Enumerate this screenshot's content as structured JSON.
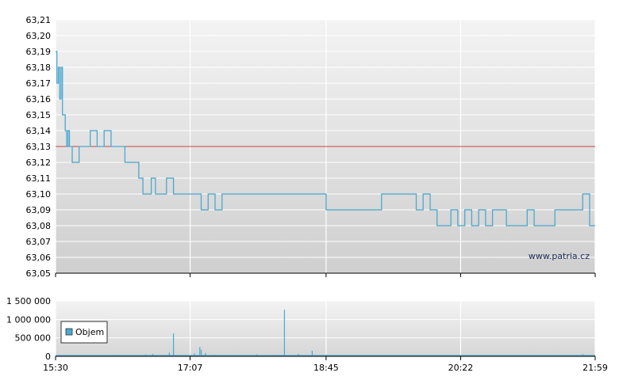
{
  "watermark": "www.patria.cz",
  "colors": {
    "price_line": "#4aa8d0",
    "reference_line": "#d04040",
    "volume_bar": "#4aa8d0",
    "grid": "#ffffff",
    "plot_bg_top": "#f2f2f2",
    "plot_bg_bottom": "#d0d0d0"
  },
  "chart_data": [
    {
      "type": "line",
      "name": "price",
      "ylim": [
        63.05,
        63.21
      ],
      "y_ticks": [
        "63,21",
        "63,20",
        "63,19",
        "63,18",
        "63,17",
        "63,16",
        "63,15",
        "63,14",
        "63,13",
        "63,12",
        "63,11",
        "63,10",
        "63,09",
        "63,08",
        "63,07",
        "63,06",
        "63,05"
      ],
      "x_ticks": [
        "15:30",
        "17:07",
        "18:45",
        "20:22",
        "21:59"
      ],
      "x_range": [
        "15:30",
        "21:59"
      ],
      "reference_value": 63.13,
      "grid": true,
      "series": [
        {
          "x": [
            "15:30",
            "15:31",
            "15:32",
            "15:33",
            "15:34",
            "15:35",
            "15:36",
            "15:37",
            "15:38",
            "15:39",
            "15:40",
            "15:42",
            "15:44",
            "15:47",
            "15:50",
            "15:55",
            "16:00",
            "16:05",
            "16:10",
            "16:15",
            "16:20",
            "16:25",
            "16:30",
            "16:33",
            "16:36",
            "16:39",
            "16:42",
            "16:45",
            "16:50",
            "16:55",
            "17:00",
            "17:05",
            "17:10",
            "17:15",
            "17:20",
            "17:25",
            "17:30",
            "17:35",
            "17:40",
            "17:45",
            "17:50",
            "17:55",
            "18:00",
            "18:05",
            "18:10",
            "18:15",
            "18:20",
            "18:25",
            "18:30",
            "18:35",
            "18:40",
            "18:45",
            "18:50",
            "18:55",
            "19:00",
            "19:05",
            "19:10",
            "19:15",
            "19:20",
            "19:25",
            "19:30",
            "19:35",
            "19:40",
            "19:45",
            "19:50",
            "19:55",
            "20:00",
            "20:05",
            "20:10",
            "20:15",
            "20:20",
            "20:25",
            "20:30",
            "20:35",
            "20:40",
            "20:45",
            "20:50",
            "20:55",
            "21:00",
            "21:05",
            "21:10",
            "21:15",
            "21:20",
            "21:25",
            "21:30",
            "21:35",
            "21:40",
            "21:45",
            "21:50",
            "21:55",
            "21:59"
          ],
          "values": [
            63.19,
            63.17,
            63.18,
            63.16,
            63.18,
            63.15,
            63.15,
            63.14,
            63.13,
            63.14,
            63.13,
            63.12,
            63.12,
            63.13,
            63.13,
            63.14,
            63.13,
            63.14,
            63.13,
            63.13,
            63.12,
            63.12,
            63.11,
            63.1,
            63.1,
            63.11,
            63.1,
            63.1,
            63.11,
            63.1,
            63.1,
            63.1,
            63.1,
            63.09,
            63.1,
            63.09,
            63.1,
            63.1,
            63.1,
            63.1,
            63.1,
            63.1,
            63.1,
            63.1,
            63.1,
            63.1,
            63.1,
            63.1,
            63.1,
            63.1,
            63.1,
            63.09,
            63.09,
            63.09,
            63.09,
            63.09,
            63.09,
            63.09,
            63.09,
            63.1,
            63.1,
            63.1,
            63.1,
            63.1,
            63.09,
            63.1,
            63.09,
            63.08,
            63.08,
            63.09,
            63.08,
            63.09,
            63.08,
            63.09,
            63.08,
            63.09,
            63.09,
            63.08,
            63.08,
            63.08,
            63.09,
            63.08,
            63.08,
            63.08,
            63.09,
            63.09,
            63.09,
            63.09,
            63.1,
            63.08,
            63.08
          ]
        }
      ]
    },
    {
      "type": "bar",
      "name": "volume",
      "ylim": [
        0,
        1500000
      ],
      "y_ticks": [
        "1 500 000",
        "1 000 000",
        "500 000",
        "0"
      ],
      "x_ticks": [
        "15:30",
        "17:07",
        "18:45",
        "20:22",
        "21:59"
      ],
      "legend": "Objem",
      "legend_position": "left",
      "series": [
        {
          "name": "Objem",
          "x": [
            "16:15",
            "16:25",
            "16:35",
            "16:40",
            "16:52",
            "16:55",
            "17:10",
            "17:14",
            "17:15",
            "17:18",
            "17:25",
            "17:40",
            "17:55",
            "18:10",
            "18:15",
            "18:25",
            "18:35",
            "18:45",
            "19:00",
            "19:30",
            "20:00",
            "20:30",
            "21:00",
            "21:30",
            "21:50"
          ],
          "values": [
            40000,
            30000,
            50000,
            60000,
            100000,
            620000,
            80000,
            250000,
            180000,
            90000,
            40000,
            30000,
            50000,
            40000,
            1260000,
            60000,
            150000,
            40000,
            30000,
            30000,
            30000,
            20000,
            30000,
            20000,
            60000
          ]
        }
      ]
    }
  ]
}
